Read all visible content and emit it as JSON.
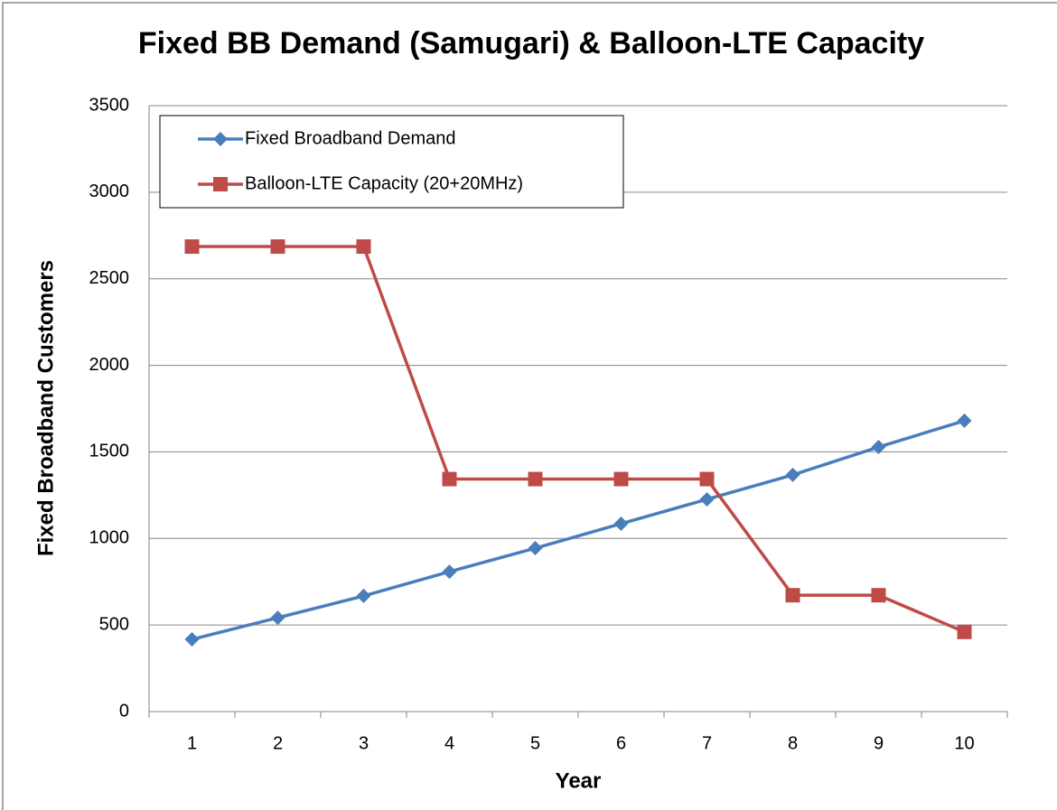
{
  "chart_data": {
    "type": "line",
    "title": "Fixed BB Demand (Samugari) & Balloon-LTE Capacity",
    "xlabel": "Year",
    "ylabel": "Fixed Broadband Customers",
    "categories": [
      "1",
      "2",
      "3",
      "4",
      "5",
      "6",
      "7",
      "8",
      "9",
      "10"
    ],
    "series": [
      {
        "name": "Fixed Broadband Demand",
        "color": "#4a7ebb",
        "marker": "diamond",
        "values": [
          417,
          542,
          668,
          808,
          944,
          1085,
          1226,
          1367,
          1528,
          1680
        ]
      },
      {
        "name": "Balloon-LTE Capacity (20+20MHz)",
        "color": "#be4b48",
        "marker": "square",
        "values": [
          2686,
          2686,
          2686,
          1343,
          1343,
          1343,
          1343,
          672,
          672,
          460
        ]
      }
    ],
    "ylim": [
      0,
      3500
    ],
    "yticks": [
      0,
      500,
      1000,
      1500,
      2000,
      2500,
      3000,
      3500
    ],
    "grid": true,
    "legend": "upper left"
  }
}
